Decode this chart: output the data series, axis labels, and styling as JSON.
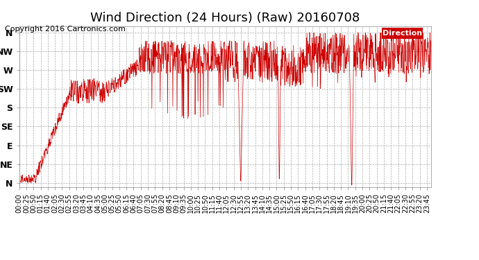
{
  "title": "Wind Direction (24 Hours) (Raw) 20160708",
  "copyright": "Copyright 2016 Cartronics.com",
  "legend_label": "Direction",
  "legend_bg": "#cc0000",
  "legend_fg": "#ffffff",
  "line_color": "#cc0000",
  "background_color": "#ffffff",
  "grid_color": "#aaaaaa",
  "ytick_labels": [
    "N",
    "NW",
    "W",
    "SW",
    "S",
    "SE",
    "E",
    "NE",
    "N"
  ],
  "ytick_values": [
    360,
    315,
    270,
    225,
    180,
    135,
    90,
    45,
    0
  ],
  "ylim": [
    -10,
    375
  ],
  "xlim_minutes": [
    0,
    1440
  ],
  "xtick_interval_minutes": 25,
  "title_fontsize": 13,
  "copyright_fontsize": 8,
  "axis_fontsize": 7,
  "ytick_fontsize": 9
}
